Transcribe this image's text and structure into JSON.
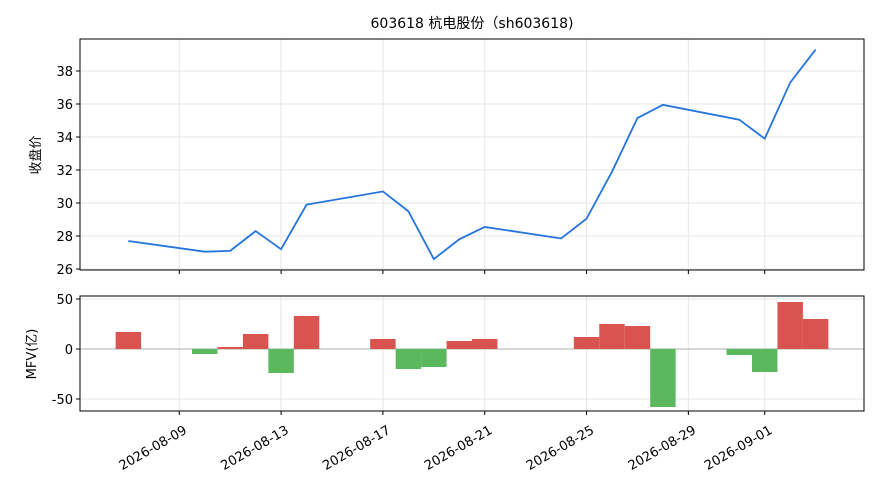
{
  "chart_data": [
    {
      "type": "line",
      "title": "603618 杭电股份（sh603618)",
      "ylabel": "收盘价",
      "color": "#2474dc",
      "grid": true,
      "x": [
        "2026-08-07",
        "2026-08-10",
        "2026-08-11",
        "2026-08-12",
        "2026-08-13",
        "2026-08-14",
        "2026-08-17",
        "2026-08-18",
        "2026-08-19",
        "2026-08-20",
        "2026-08-21",
        "2026-08-24",
        "2026-08-25",
        "2026-08-26",
        "2026-08-27",
        "2026-08-28",
        "2026-08-31",
        "2026-09-01",
        "2026-09-02",
        "2026-09-03"
      ],
      "values": [
        27.7,
        27.05,
        27.1,
        28.3,
        27.2,
        29.9,
        30.7,
        29.5,
        26.6,
        27.8,
        28.55,
        27.85,
        29.05,
        31.9,
        35.15,
        35.95,
        35.05,
        33.9,
        37.3,
        39.3
      ],
      "xlim": [
        "2026-08-05T02:24",
        "2026-09-04T21:36"
      ],
      "xticks": [
        "2026-08-09",
        "2026-08-13",
        "2026-08-17",
        "2026-08-21",
        "2026-08-25",
        "2026-08-29",
        "2026-09-01"
      ],
      "ylim": [
        25.94,
        39.94
      ],
      "yticks": [
        26,
        28,
        30,
        32,
        34,
        36,
        38
      ]
    },
    {
      "type": "bar",
      "ylabel": "MFV(亿)",
      "positive_color": "#d9534f",
      "negative_color": "#5cb85c",
      "grid": true,
      "x": [
        "2026-08-07",
        "2026-08-10",
        "2026-08-11",
        "2026-08-12",
        "2026-08-13",
        "2026-08-14",
        "2026-08-17",
        "2026-08-18",
        "2026-08-19",
        "2026-08-20",
        "2026-08-21",
        "2026-08-24",
        "2026-08-25",
        "2026-08-26",
        "2026-08-27",
        "2026-08-28",
        "2026-08-31",
        "2026-09-01",
        "2026-09-02",
        "2026-09-03"
      ],
      "values": [
        17,
        -5,
        2,
        15,
        -24,
        33,
        10,
        -20,
        -18,
        8,
        10,
        0,
        12,
        25,
        23,
        -58,
        -6,
        -23,
        47,
        30
      ],
      "xlim": [
        "2026-08-05T02:24",
        "2026-09-04T21:36"
      ],
      "xticks": [
        "2026-08-09",
        "2026-08-13",
        "2026-08-17",
        "2026-08-21",
        "2026-08-25",
        "2026-08-29",
        "2026-09-01"
      ],
      "ylim": [
        -62,
        53
      ],
      "yticks": [
        50,
        0,
        -50
      ]
    }
  ]
}
